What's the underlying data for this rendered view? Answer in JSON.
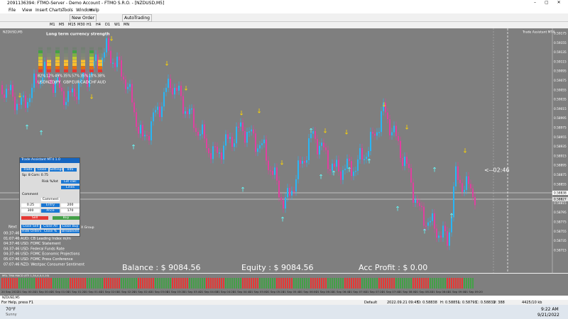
{
  "window": {
    "title": "2091136394: FTMO-Server - Demo Account - FTMO S.R.O. - [NZDUSD,M5]"
  },
  "menu": [
    "File",
    "View",
    "Insert",
    "Charts",
    "Tools",
    "Window",
    "Help"
  ],
  "toolbar": {
    "new_order": "New Order",
    "autotrading": "AutoTrading"
  },
  "timeframes": [
    "M1",
    "M5",
    "M15",
    "M30",
    "H1",
    "H4",
    "D1",
    "W1",
    "MN"
  ],
  "chart": {
    "symbol": "NZDUSD,M5",
    "assistant": "Trade Assistant MT4",
    "strength_title": "Long term currency strength",
    "strength_percents": [
      "82%",
      "12%",
      "49%",
      "35%",
      "57%",
      "35%",
      "10%",
      "38%"
    ],
    "strength_currencies": [
      "USD",
      "NZD",
      "JPY",
      "GBP",
      "EUR",
      "CAD",
      "CHF",
      "AUD"
    ],
    "countdown": "<--02:46",
    "balance": "Balance : $ 9084.56",
    "equity": "Equity : $ 9084.56",
    "profit": "Acc Profit : $ 0.00",
    "price_labels": [
      "0.59175",
      "0.59155",
      "0.59135",
      "0.59115",
      "0.59095",
      "0.59075",
      "0.59055",
      "0.59035",
      "0.59015",
      "0.58995",
      "0.58975",
      "0.58955",
      "0.58935",
      "0.58915",
      "0.58895",
      "0.58875",
      "0.58855",
      "0.58835",
      "0.58815",
      "0.58795",
      "0.58775",
      "0.58755",
      "0.58735",
      "0.58715"
    ],
    "current_prices": [
      "0.58838",
      "0.58827"
    ],
    "time_labels": [
      "20 Sep 2022",
      "21 Sep 00:20",
      "21 Sep 00:40",
      "21 Sep 01:00",
      "21 Sep 01:20",
      "21 Sep 01:40",
      "21 Sep 02:00",
      "21 Sep 02:20",
      "21 Sep 02:40",
      "21 Sep 03:00",
      "21 Sep 03:20",
      "21 Sep 03:40",
      "21 Sep 04:00",
      "21 Sep 04:20",
      "21 Sep 04:40",
      "21 Sep 05:00",
      "21 Sep 05:20",
      "21 Sep 05:40",
      "21 Sep 06:00",
      "21 Sep 06:20",
      "21 Sep 06:40",
      "21 Sep 07:00",
      "21 Sep 07:20",
      "21 Sep 07:40",
      "21 Sep 08:00",
      "21 Sep 08:20",
      "21 Sep 08:40",
      "21 Sep 09:00",
      "21 Sep 09:20"
    ],
    "indicator_label": "MSL TMA MACD (ETI 1,34,4,0,0,10)",
    "next": "Next",
    "news": [
      "00:37:46 USD: Crude Oil Inventories",
      "01:07:46 AUD: CB Leading Index m/m",
      "04:37:46 USD: FOMC Statement",
      "04:37:46 USD: Federal Funds Rate",
      "04:37:46 USD: FOMC Economic Projections",
      "05:07:46 USD: FOMC Press Conference",
      "07:07:46 NZD: Westpac Consumer Sentiment"
    ]
  },
  "panel": {
    "title": "Trade Assistant MT4 1.0",
    "tabs": [
      "Trade",
      "Close",
      "Settings",
      "Info"
    ],
    "spread": "Sp: 8  Com: 0.75",
    "lot_calc": "Lot calc",
    "risk": "Risk %/lot",
    "lines": "Lines",
    "comment": "Comment",
    "entry": "Entry",
    "price": "Price",
    "lot": "0.25",
    "entry_value": "200",
    "sl": "300",
    "price_value": "170",
    "sell": "Sell",
    "buy": "Buy",
    "close_buttons": [
      "Close Sell",
      "Close All",
      "Close Buy"
    ],
    "hide": "Hide Orders",
    "close_pct": "Close %",
    "breakeven": "Breakeven",
    "group": "X Group"
  },
  "status": [
    "For Help, press F1",
    "Default",
    "2022.09.21 09:45",
    "O: 0.58838",
    "H: 0.58851",
    "L: 0.58793",
    "C: 0.58832",
    "V: 388",
    "4425/10 kb"
  ],
  "taskbar": {
    "temp": "70°F",
    "weather": "Sunny",
    "time": "9:22 AM",
    "date": "9/21/2022"
  }
}
